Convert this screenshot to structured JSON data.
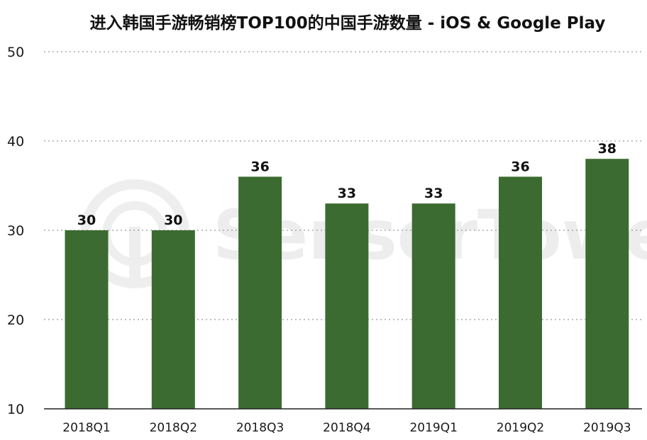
{
  "chart_data": {
    "type": "bar",
    "title": "进入韩国手游畅销榜TOP100的中国手游数量 - iOS & Google Play",
    "categories": [
      "2018Q1",
      "2018Q2",
      "2018Q3",
      "2018Q4",
      "2019Q1",
      "2019Q2",
      "2019Q3"
    ],
    "values": [
      30,
      30,
      36,
      33,
      33,
      36,
      38
    ],
    "data_labels": [
      "30",
      "30",
      "36",
      "33",
      "33",
      "36",
      "38"
    ],
    "y_ticks": [
      "10",
      "20",
      "30",
      "40",
      "50"
    ],
    "ylim": [
      10,
      50
    ],
    "grid": "dotted-horizontal",
    "legend": "none",
    "bar_color": "#3b6b30",
    "watermark": "SensorTower",
    "watermark_icon": "sensor-tower-logo-icon"
  }
}
